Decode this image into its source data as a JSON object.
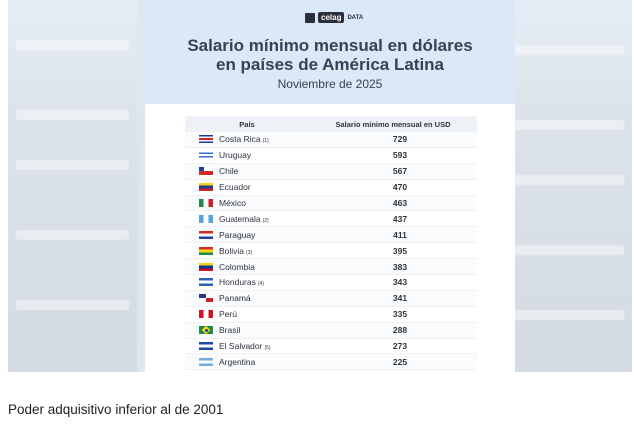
{
  "logo": {
    "brand": "celag",
    "sub": "DATA"
  },
  "title_line1": "Salario mínimo mensual en dólares",
  "title_line2": "en países de América Latina",
  "subtitle": "Noviembre de 2025",
  "table": {
    "headers": [
      "País",
      "Salario mínimo mensual en USD"
    ],
    "rows": [
      {
        "country": "Costa Rica",
        "note": "(1)",
        "value": "729",
        "flag": [
          "#1b3a8a",
          "#ffffff",
          "#d21f2b",
          "#ffffff",
          "#1b3a8a"
        ]
      },
      {
        "country": "Uruguay",
        "note": "",
        "value": "593",
        "flag": [
          "#ffffff",
          "#3b6cc9",
          "#ffffff",
          "#3b6cc9",
          "#ffffff"
        ]
      },
      {
        "country": "Chile",
        "note": "",
        "value": "567",
        "flag": [
          "#1d3fa0",
          "#ffffff",
          "#d62828"
        ]
      },
      {
        "country": "Ecuador",
        "note": "",
        "value": "470",
        "flag": [
          "#f7d117",
          "#1f3a8f",
          "#d2232a"
        ]
      },
      {
        "country": "México",
        "note": "",
        "value": "463",
        "flag": [
          "#1f8a4c",
          "#ffffff",
          "#c8202c"
        ]
      },
      {
        "country": "Guatemala",
        "note": "(2)",
        "value": "437",
        "flag": [
          "#57a4df",
          "#ffffff",
          "#57a4df"
        ]
      },
      {
        "country": "Paraguay",
        "note": "",
        "value": "411",
        "flag": [
          "#d52b1e",
          "#ffffff",
          "#1e3fa6"
        ]
      },
      {
        "country": "Bolivia",
        "note": "(3)",
        "value": "395",
        "flag": [
          "#d52b1e",
          "#f9d616",
          "#1f8a4c"
        ]
      },
      {
        "country": "Colombia",
        "note": "",
        "value": "383",
        "flag": [
          "#fcd116",
          "#003893",
          "#ce1126"
        ]
      },
      {
        "country": "Honduras",
        "note": "(4)",
        "value": "343",
        "flag": [
          "#2a62b8",
          "#ffffff",
          "#2a62b8"
        ]
      },
      {
        "country": "Panamá",
        "note": "",
        "value": "341",
        "flag": [
          "#ffffff",
          "#d21f2b",
          "#1f3a8f",
          "#ffffff"
        ]
      },
      {
        "country": "Perú",
        "note": "",
        "value": "335",
        "flag": [
          "#d91023",
          "#ffffff",
          "#d91023"
        ]
      },
      {
        "country": "Brasil",
        "note": "",
        "value": "288",
        "flag": [
          "#1f8a4c",
          "#f9d616",
          "#1f8a4c"
        ]
      },
      {
        "country": "El Salvador",
        "note": "(5)",
        "value": "273",
        "flag": [
          "#1f48a8",
          "#ffffff",
          "#1f48a8"
        ]
      },
      {
        "country": "Argentina",
        "note": "",
        "value": "225",
        "flag": [
          "#74acdf",
          "#ffffff",
          "#74acdf"
        ]
      }
    ]
  },
  "caption": "Poder adquisitivo inferior al de 2001"
}
